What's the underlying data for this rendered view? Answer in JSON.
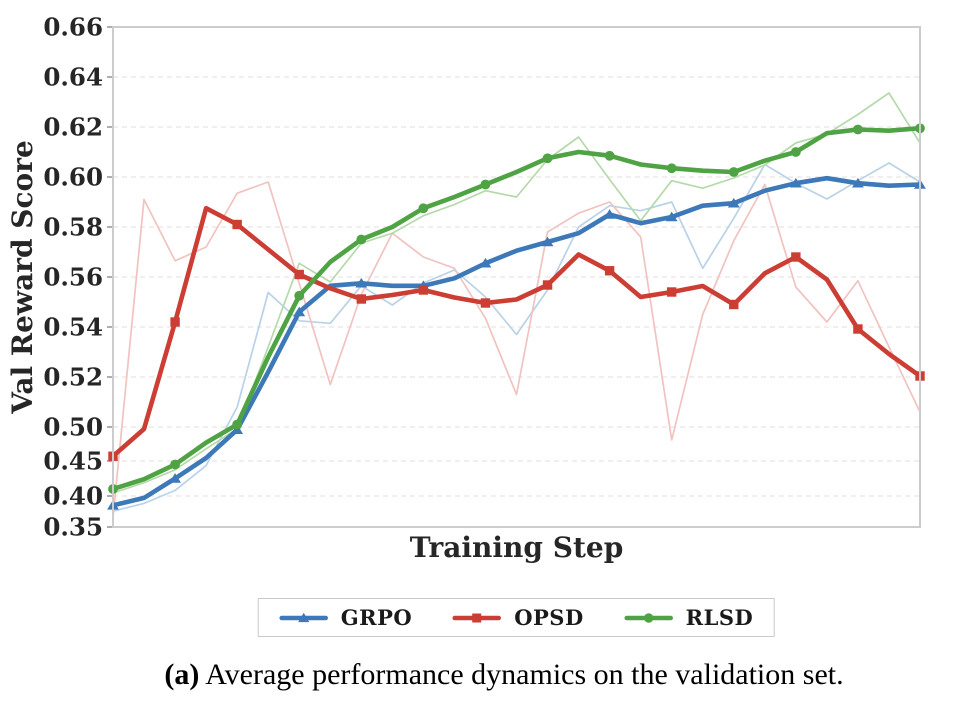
{
  "figure": {
    "caption_label": "(a)",
    "caption_text": " Average performance dynamics on the validation set."
  },
  "chart_data": {
    "type": "line",
    "title": "",
    "xlabel": "Training Step",
    "ylabel": "Val Reward Score",
    "grid": "horizontal dashed",
    "grid_color": "#ece4e4",
    "axis_border_color": "#cccccc",
    "legend_position": "bottom-center",
    "n_points": 27,
    "x_axis_note": "no numeric tick labels shown",
    "y_ticks": [
      "0.66",
      "0.64",
      "0.62",
      "0.60",
      "0.58",
      "0.56",
      "0.54",
      "0.52",
      "0.50",
      "0.45",
      "0.40",
      "0.35"
    ],
    "y_scale_note": "non-linear: region 0.35-0.50 compressed relative to 0.50-0.66",
    "series": [
      {
        "name": "GRPO",
        "color": "#3d79b8",
        "raw_color": "#b9d2e8",
        "marker": "triangle-up",
        "smoothed": [
          0.385,
          0.397,
          0.425,
          0.4545,
          0.496,
          0.522,
          0.546,
          0.5565,
          0.5575,
          0.5565,
          0.5565,
          0.5595,
          0.5655,
          0.5705,
          0.574,
          0.5775,
          0.585,
          0.5815,
          0.584,
          0.5885,
          0.5895,
          0.5945,
          0.5975,
          0.5995,
          0.5975,
          0.5965,
          0.597
        ],
        "raw": [
          0.3755,
          0.388,
          0.408,
          0.4435,
          0.508,
          0.5538,
          0.5425,
          0.5415,
          0.5565,
          0.5488,
          0.5576,
          0.5628,
          0.552,
          0.537,
          0.5548,
          0.58,
          0.5885,
          0.5865,
          0.59,
          0.5635,
          0.5835,
          0.605,
          0.5975,
          0.5912,
          0.5985,
          0.6056,
          0.598
        ]
      },
      {
        "name": "OPSD",
        "color": "#cc3d33",
        "raw_color": "#f0c3c0",
        "marker": "square",
        "smoothed": [
          0.457,
          0.497,
          0.542,
          0.5875,
          0.581,
          0.571,
          0.561,
          0.5555,
          0.5512,
          0.5528,
          0.5548,
          0.5518,
          0.5496,
          0.551,
          0.5568,
          0.569,
          0.5625,
          0.552,
          0.554,
          0.5564,
          0.549,
          0.5615,
          0.568,
          0.559,
          0.5392,
          0.5292,
          0.5204
        ],
        "raw": [
          0.365,
          0.591,
          0.5665,
          0.572,
          0.5935,
          0.598,
          0.5575,
          0.517,
          0.553,
          0.5775,
          0.568,
          0.5635,
          0.5435,
          0.513,
          0.578,
          0.5855,
          0.59,
          0.576,
          0.481,
          0.545,
          0.5745,
          0.597,
          0.556,
          0.542,
          0.5585,
          0.532,
          0.506
        ]
      },
      {
        "name": "RLSD",
        "color": "#4fa344",
        "raw_color": "#b5d9ab",
        "marker": "circle",
        "smoothed": [
          0.41,
          0.424,
          0.445,
          0.477,
          0.501,
          0.528,
          0.5525,
          0.566,
          0.575,
          0.58,
          0.5875,
          0.592,
          0.597,
          0.602,
          0.6075,
          0.61,
          0.6085,
          0.605,
          0.6035,
          0.6025,
          0.602,
          0.6065,
          0.61,
          0.6175,
          0.619,
          0.6185,
          0.6195
        ],
        "raw": [
          0.4045,
          0.419,
          0.4375,
          0.468,
          0.4975,
          0.532,
          0.5655,
          0.558,
          0.5735,
          0.5775,
          0.5845,
          0.589,
          0.5945,
          0.592,
          0.607,
          0.616,
          0.599,
          0.5825,
          0.5985,
          0.5955,
          0.5996,
          0.6048,
          0.6136,
          0.6172,
          0.625,
          0.6336,
          0.6136
        ]
      }
    ]
  }
}
